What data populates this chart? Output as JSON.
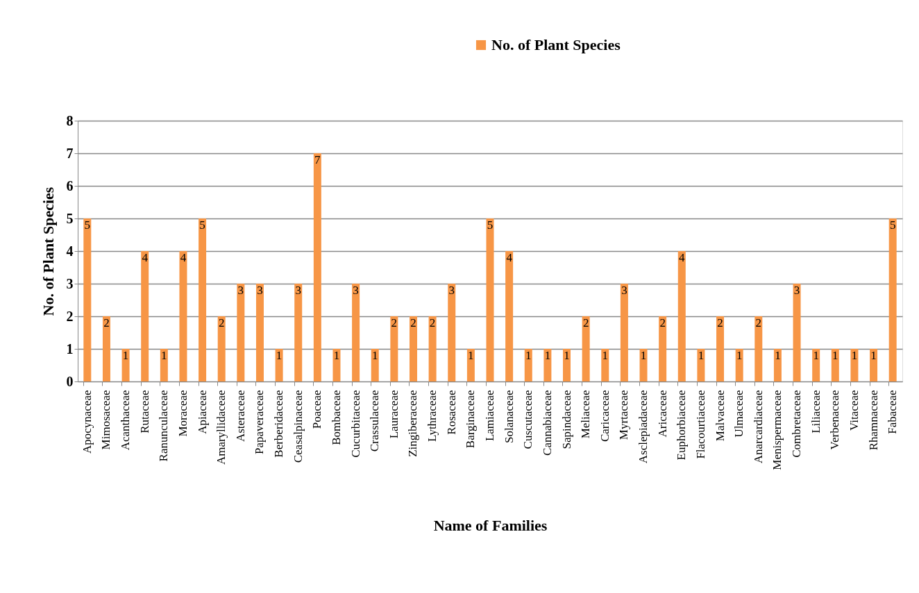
{
  "chart_data": {
    "type": "bar",
    "xlabel": "Name of Families",
    "ylabel": "No. of Plant Species",
    "categories": [
      "Apocynaceae",
      "Mimosaceae",
      "Acanthaceae",
      "Rutaceae",
      "Ranunculaceae",
      "Moraceae",
      "Apiaceae",
      "Amaryllidaceae",
      "Asteraceae",
      "Papaveraceae",
      "Berberidaceae",
      "Ceasalpinaceae",
      "Poaceae",
      "Bombaceae",
      "Cucurbitaceae",
      "Crassulaceae",
      "Lauraceae",
      "Zingiberaceae",
      "Lythraceae",
      "Rosaceae",
      "Barginaceae",
      "Lamiaceae",
      "Solanaceae",
      "Cuscutaceae",
      "Cannabiaceae",
      "Sapindaceae",
      "Meliaceae",
      "Caricaceae",
      "Myrtaceae",
      "Asclepiadaceae",
      "Aricaceae",
      "Euphorbiaceae",
      "Flacourtiaceae",
      "Malvaceae",
      "Ulmaceae",
      "Anarcardiaceae",
      "Menispermaceae",
      "Combretaceae",
      "Liliaceae",
      "Verbenaceae",
      "Vitaceae",
      "Rhamnaceae",
      "Fabaceae"
    ],
    "series": [
      {
        "name": "No. of Plant Species",
        "color": "#f79646",
        "values": [
          5,
          2,
          1,
          4,
          1,
          4,
          5,
          2,
          3,
          3,
          1,
          3,
          7,
          1,
          3,
          1,
          2,
          2,
          2,
          3,
          1,
          5,
          4,
          1,
          1,
          1,
          2,
          1,
          3,
          1,
          2,
          4,
          1,
          2,
          1,
          2,
          1,
          3,
          1,
          1,
          1,
          1,
          5
        ]
      }
    ],
    "ylim": [
      0,
      8
    ],
    "yticks": [
      0,
      1,
      2,
      3,
      4,
      5,
      6,
      7,
      8
    ],
    "grid": "y",
    "legend": "top right",
    "data_labels": true
  }
}
